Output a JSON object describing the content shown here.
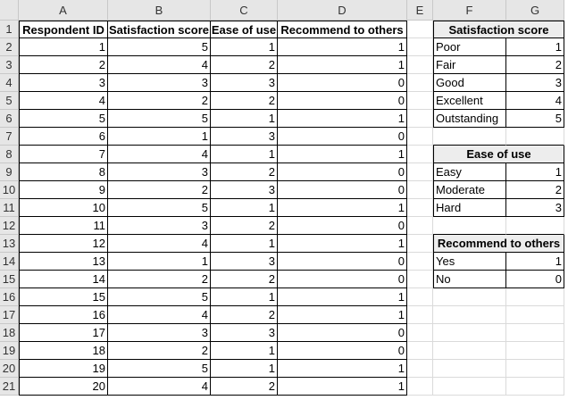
{
  "columns": [
    "A",
    "B",
    "C",
    "D",
    "E",
    "F",
    "G"
  ],
  "rows": [
    "1",
    "2",
    "3",
    "4",
    "5",
    "6",
    "7",
    "8",
    "9",
    "10",
    "11",
    "12",
    "13",
    "14",
    "15",
    "16",
    "17",
    "18",
    "19",
    "20",
    "21"
  ],
  "main_table": {
    "headers": [
      "Respondent ID",
      "Satisfaction score",
      "Ease of use",
      "Recommend to others"
    ],
    "rows": [
      [
        "1",
        "5",
        "1",
        "1"
      ],
      [
        "2",
        "4",
        "2",
        "1"
      ],
      [
        "3",
        "3",
        "3",
        "0"
      ],
      [
        "4",
        "2",
        "2",
        "0"
      ],
      [
        "5",
        "5",
        "1",
        "1"
      ],
      [
        "6",
        "1",
        "3",
        "0"
      ],
      [
        "7",
        "4",
        "1",
        "1"
      ],
      [
        "8",
        "3",
        "2",
        "0"
      ],
      [
        "9",
        "2",
        "3",
        "0"
      ],
      [
        "10",
        "5",
        "1",
        "1"
      ],
      [
        "11",
        "3",
        "2",
        "0"
      ],
      [
        "12",
        "4",
        "1",
        "1"
      ],
      [
        "13",
        "1",
        "3",
        "0"
      ],
      [
        "14",
        "2",
        "2",
        "0"
      ],
      [
        "15",
        "5",
        "1",
        "1"
      ],
      [
        "16",
        "4",
        "2",
        "1"
      ],
      [
        "17",
        "3",
        "3",
        "0"
      ],
      [
        "18",
        "2",
        "1",
        "0"
      ],
      [
        "19",
        "5",
        "1",
        "1"
      ],
      [
        "20",
        "4",
        "2",
        "1"
      ]
    ]
  },
  "lookup_tables": [
    {
      "title": "Satisfaction score",
      "items": [
        [
          "Poor",
          "1"
        ],
        [
          "Fair",
          "2"
        ],
        [
          "Good",
          "3"
        ],
        [
          "Excellent",
          "4"
        ],
        [
          "Outstanding",
          "5"
        ]
      ]
    },
    {
      "title": "Ease of use",
      "items": [
        [
          "Easy",
          "1"
        ],
        [
          "Moderate",
          "2"
        ],
        [
          "Hard",
          "3"
        ]
      ]
    },
    {
      "title": "Recommend to others",
      "items": [
        [
          "Yes",
          "1"
        ],
        [
          "No",
          "0"
        ]
      ]
    }
  ],
  "colors": {
    "header_bg": "#e6e6e6",
    "table_title_bg": "#ededed",
    "border": "#000000",
    "gridline": "#dadada"
  }
}
